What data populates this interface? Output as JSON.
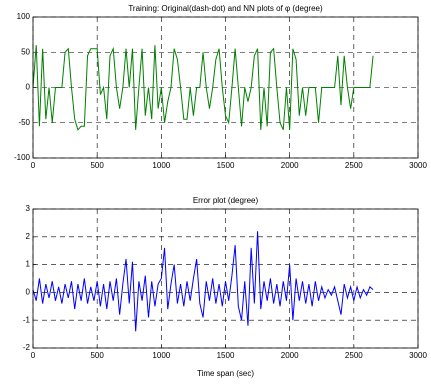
{
  "chart_data": [
    {
      "type": "line",
      "title": "Training: Original(dash-dot) and NN plots of φ (degree)",
      "xlim": [
        0,
        3000
      ],
      "xticks": [
        0,
        500,
        1000,
        1500,
        2000,
        2500,
        3000
      ],
      "ylim": [
        -100,
        100
      ],
      "yticks": [
        -100,
        -50,
        0,
        50,
        100
      ],
      "grid": true,
      "x": [
        0,
        25,
        50,
        75,
        100,
        125,
        150,
        175,
        200,
        225,
        250,
        275,
        300,
        325,
        350,
        375,
        400,
        425,
        450,
        475,
        500,
        525,
        550,
        575,
        600,
        625,
        650,
        675,
        700,
        725,
        750,
        775,
        800,
        825,
        850,
        875,
        900,
        925,
        950,
        975,
        1000,
        1025,
        1050,
        1075,
        1100,
        1125,
        1150,
        1175,
        1200,
        1225,
        1250,
        1275,
        1300,
        1325,
        1350,
        1375,
        1400,
        1425,
        1450,
        1475,
        1500,
        1525,
        1550,
        1575,
        1600,
        1625,
        1650,
        1675,
        1700,
        1725,
        1750,
        1775,
        1800,
        1825,
        1850,
        1875,
        1900,
        1925,
        1950,
        1975,
        2000,
        2025,
        2050,
        2075,
        2100,
        2125,
        2150,
        2175,
        2200,
        2225,
        2250,
        2275,
        2300,
        2325,
        2350,
        2375,
        2400,
        2425,
        2450,
        2475,
        2500,
        2525,
        2550,
        2575,
        2600,
        2625,
        2650
      ],
      "series": [
        {
          "color": "#008000",
          "values": [
            0,
            60,
            -55,
            55,
            -45,
            0,
            -50,
            0,
            0,
            0,
            50,
            55,
            0,
            -45,
            -60,
            -55,
            -55,
            45,
            55,
            55,
            55,
            -10,
            0,
            -45,
            45,
            55,
            0,
            -30,
            0,
            55,
            0,
            55,
            -60,
            0,
            55,
            -40,
            0,
            -45,
            60,
            -30,
            0,
            -50,
            -20,
            0,
            55,
            40,
            0,
            -45,
            -45,
            0,
            -40,
            0,
            0,
            50,
            0,
            -30,
            0,
            40,
            55,
            0,
            -40,
            -50,
            0,
            55,
            0,
            -55,
            0,
            -20,
            0,
            45,
            55,
            -60,
            0,
            -55,
            50,
            55,
            0,
            -50,
            -60,
            0,
            -60,
            55,
            40,
            -40,
            0,
            -40,
            0,
            0,
            0,
            -50,
            0,
            0,
            0,
            0,
            0,
            45,
            -25,
            45,
            0,
            -30,
            0,
            0,
            0,
            0,
            0,
            0,
            45
          ]
        }
      ]
    },
    {
      "type": "line",
      "title": "Error plot (degree)",
      "xlabel": "Time span (sec)",
      "xlim": [
        0,
        3000
      ],
      "xticks": [
        0,
        500,
        1000,
        1500,
        2000,
        2500,
        3000
      ],
      "ylim": [
        -2,
        3
      ],
      "yticks": [
        -2,
        -1,
        0,
        1,
        2,
        3
      ],
      "grid": true,
      "x": [
        0,
        25,
        50,
        75,
        100,
        125,
        150,
        175,
        200,
        225,
        250,
        275,
        300,
        325,
        350,
        375,
        400,
        425,
        450,
        475,
        500,
        525,
        550,
        575,
        600,
        625,
        650,
        675,
        700,
        725,
        750,
        775,
        800,
        825,
        850,
        875,
        900,
        925,
        950,
        975,
        1000,
        1025,
        1050,
        1075,
        1100,
        1125,
        1150,
        1175,
        1200,
        1225,
        1250,
        1275,
        1300,
        1325,
        1350,
        1375,
        1400,
        1425,
        1450,
        1475,
        1500,
        1525,
        1550,
        1575,
        1600,
        1625,
        1650,
        1675,
        1700,
        1725,
        1750,
        1775,
        1800,
        1825,
        1850,
        1875,
        1900,
        1925,
        1950,
        1975,
        2000,
        2025,
        2050,
        2075,
        2100,
        2125,
        2150,
        2175,
        2200,
        2225,
        2250,
        2275,
        2300,
        2325,
        2350,
        2375,
        2400,
        2425,
        2450,
        2475,
        2500,
        2525,
        2550,
        2575,
        2600,
        2625,
        2650
      ],
      "series": [
        {
          "color": "#0000ff",
          "values": [
            0.1,
            -0.3,
            0.5,
            -0.4,
            0.3,
            -0.2,
            0.4,
            -0.3,
            0.2,
            -0.4,
            0.3,
            -0.2,
            0.4,
            -0.6,
            0.3,
            -0.3,
            0.5,
            -0.4,
            0.2,
            -0.3,
            0.4,
            -0.5,
            0.3,
            -0.6,
            0.4,
            -0.3,
            0.5,
            -0.8,
            0.3,
            1.2,
            -0.4,
            1.1,
            -1.4,
            0.4,
            -0.3,
            0.6,
            -0.9,
            0.4,
            -0.5,
            0.3,
            0.5,
            1.6,
            -0.6,
            0.3,
            1.0,
            -0.4,
            0.3,
            -0.5,
            0.4,
            -0.3,
            0.5,
            1.2,
            -0.4,
            -0.9,
            0.4,
            -0.3,
            0.5,
            -0.4,
            0.3,
            -0.5,
            0.4,
            -0.3,
            0.6,
            1.7,
            -0.5,
            -1.0,
            0.4,
            -1.2,
            1.6,
            -0.4,
            2.2,
            -0.6,
            0.4,
            -0.3,
            0.5,
            -0.4,
            0.3,
            -0.5,
            0.4,
            -0.3,
            1.0,
            -1.0,
            0.5,
            -0.3,
            0.4,
            -0.4,
            0.3,
            -0.5,
            0.4,
            -0.3,
            0.2,
            -0.2,
            0.1,
            -0.1,
            0.2,
            -0.3,
            -0.8,
            0.3,
            -0.2,
            0.2,
            -0.3,
            0.2,
            -0.2,
            0.1,
            -0.1,
            0.2,
            0.1
          ]
        }
      ]
    }
  ]
}
